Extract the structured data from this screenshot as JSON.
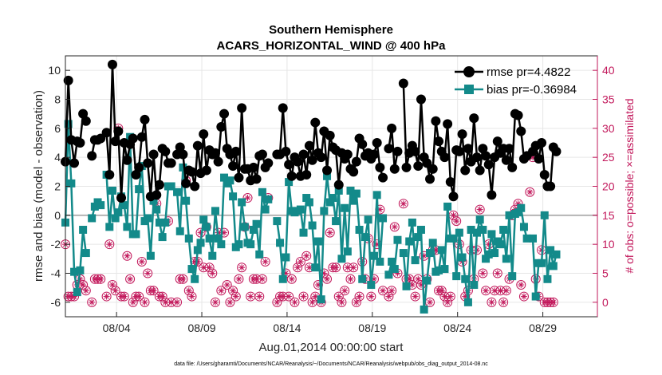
{
  "chart_data": {
    "type": "line",
    "title": "Southern Hemisphere",
    "subtitle": "ACARS_HORIZONTAL_WIND @ 400 hPa",
    "xlabel": "Aug.01,2014 00:00:00 start",
    "ylabel": "rmse and bias (model - observation)",
    "y2label": "# of obs: o=possible; ×=assimilated",
    "footnote": "data file: /Users/gharamti/Documents/NCAR/Reanalysis/~/Documents/NCAR/Reanalysis/webpub/obs_diag_output_2014-08.nc",
    "xlim": [
      1,
      32.2
    ],
    "ylim": [
      -7,
      11
    ],
    "y2lim": [
      -2.5,
      42.5
    ],
    "yticks": [
      -6,
      -4,
      -2,
      0,
      2,
      4,
      6,
      8,
      10
    ],
    "y2ticks": [
      0,
      5,
      10,
      15,
      20,
      25,
      30,
      35,
      40
    ],
    "xticks": [
      {
        "day": 4,
        "label": "08/04"
      },
      {
        "day": 9,
        "label": "08/09"
      },
      {
        "day": 14,
        "label": "08/14"
      },
      {
        "day": 19,
        "label": "08/19"
      },
      {
        "day": 24,
        "label": "08/24"
      },
      {
        "day": 29,
        "label": "08/29"
      }
    ],
    "legend": [
      "rmse pr=4.4822",
      "bias pr=-0.36984"
    ],
    "legend_position": "top-right",
    "grid": true,
    "colors": {
      "rmse": "#000000",
      "bias": "#138a8a",
      "obs": "#c2185b",
      "zero": "#b4b4b4",
      "grid": "#e6e6e6"
    },
    "series": [
      {
        "name": "rmse",
        "values": [
          3.7,
          9.3,
          5.2,
          3.6,
          5.1,
          5.0,
          7.0,
          6.5,
          null,
          4.1,
          5.2,
          5.2,
          5.3,
          null,
          5.7,
          2.8,
          10.4,
          5.1,
          5.8,
          1.2,
          5.0,
          3.8,
          4.9,
          5.3,
          2.8,
          3.3,
          5.4,
          6.6,
          3.6,
          1.3,
          4.2,
          1.4,
          2.1,
          4.6,
          4.4,
          3.6,
          3.6,
          null,
          4.2,
          4.7,
          4.2,
          2.2,
          3.1,
          3.0,
          2.0,
          4.8,
          2.9,
          5.6,
          3.1,
          4.5,
          4.2,
          4.3,
          3.7,
          6.1,
          7.0,
          4.6,
          4.2,
          3.4,
          4.4,
          2.6,
          7.4,
          3.2,
          3.2,
          2.4,
          3.3,
          2.5,
          4.1,
          4.2,
          3.3,
          3.6,
          null,
          null,
          4.2,
          4.2,
          7.4,
          4.4,
          3.5,
          2.7,
          4.0,
          3.7,
          2.7,
          4.2,
          2.8,
          4.8,
          3.8,
          6.4,
          4.3,
          4.0,
          5.8,
          3.1,
          5.5,
          4.7,
          4.5,
          2.1,
          4.3,
          3.9,
          4.2,
          3.2,
          3.0,
          3.7,
          5.3,
          4.9,
          4.1,
          4.3,
          3.9,
          4.2,
          5.0,
          3.3,
          2.6,
          null,
          4.6,
          6.0,
          3.2,
          4.4,
          null,
          9.1,
          3.3,
          4.3,
          4.8,
          4.4,
          3.4,
          8.0,
          4.0,
          3.6,
          2.5,
          3.2,
          6.5,
          5.1,
          4.4,
          4.0,
          6.3,
          2.3,
          1.3,
          4.5,
          4.4,
          5.6,
          3.1,
          4.6,
          3.7,
          6.7,
          4.0,
          3.1,
          4.6,
          4.1,
          3.5,
          1.4,
          4.0,
          5.1,
          4.3,
          4.6,
          3.8,
          4.6,
          3.3,
          7.0,
          6.9,
          5.8,
          3.9,
          4.1,
          null,
          4.4,
          4.8,
          3.9,
          5.0,
          2.8,
          2.0,
          2.0,
          4.7,
          4.4
        ]
      },
      {
        "name": "bias",
        "values": [
          -0.5,
          6.3,
          2.2,
          -3.9,
          -5.3,
          -3.8,
          -1.0,
          -2.6,
          null,
          -0.2,
          0.6,
          0.9,
          0.7,
          null,
          2.8,
          -0.8,
          1.7,
          -0.2,
          0.2,
          1.3,
          0.7,
          -0.8,
          5.4,
          -1.3,
          -1.3,
          1.8,
          3.4,
          -0.4,
          -0.2,
          -2.8,
          1.0,
          0.4,
          -0.5,
          -1.5,
          -0.5,
          2.0,
          2.0,
          null,
          1.6,
          -1.1,
          3.3,
          1.0,
          -1.6,
          -3.7,
          -4.4,
          -2.4,
          -1.9,
          -0.3,
          -0.8,
          -1.6,
          -2.8,
          0.3,
          -1.6,
          -2.0,
          2.6,
          2.2,
          2.4,
          1.3,
          -2.2,
          -2.0,
          0.9,
          -0.8,
          -1.9,
          -2.0,
          -1.0,
          -0.6,
          -2.7,
          1.6,
          0.4,
          1.1,
          null,
          null,
          -0.4,
          -1.9,
          -4.4,
          -2.9,
          2.3,
          0.3,
          0.2,
          0.3,
          0.4,
          -1.2,
          1.2,
          0.9,
          -0.7,
          -3.6,
          -1.8,
          -5.8,
          0.3,
          2.7,
          0.9,
          1.2,
          -0.4,
          1.7,
          -3.0,
          0.5,
          -2.5,
          1.7,
          1.0,
          1.5,
          -1.0,
          -4.4,
          -1.5,
          -0.3,
          -4.8,
          -2.8,
          1.4,
          -3.2,
          -0.2,
          null,
          -4.1,
          -3.2,
          -3.7,
          -1.7,
          null,
          -2.6,
          -4.9,
          -1.8,
          -0.5,
          -3.1,
          -1.5,
          -1.0,
          -6.5,
          -4.5,
          -2.6,
          -1.9,
          -3.9,
          -3.8,
          -2.4,
          -3.7,
          0.6,
          -1.6,
          -1.6,
          -4.2,
          -1.2,
          -2.9,
          -4.4,
          -6.0,
          -1.0,
          -4.8,
          -1.2,
          -0.3,
          -1.0,
          -3.0,
          -2.7,
          -1.3,
          -2.6,
          -1.8,
          -2.0,
          -1.0,
          -3.0,
          0.0,
          -4.2,
          0.1,
          0.2,
          0.5,
          -0.8,
          -1.6,
          null,
          -1.6,
          -5.6,
          -3.3,
          -3.3,
          0.0,
          -4.4,
          -2.4,
          -3.5,
          -2.7
        ]
      },
      {
        "name": "obs_possible",
        "values": [
          10,
          1,
          1,
          1,
          3,
          4,
          3,
          2,
          null,
          0,
          4,
          4,
          4,
          null,
          1,
          10,
          3,
          2,
          30,
          1,
          1,
          8,
          4,
          0,
          1,
          1,
          7,
          0,
          5,
          2,
          2,
          17,
          1,
          1,
          0,
          14,
          0,
          null,
          0,
          4,
          4,
          21,
          2,
          1,
          7,
          7,
          12,
          6,
          13,
          6,
          5,
          0,
          12,
          2,
          12,
          3,
          0,
          2,
          1,
          4,
          6,
          13,
          18,
          1,
          4,
          4,
          1,
          4,
          7,
          18,
          null,
          null,
          0,
          1,
          1,
          5,
          1,
          4,
          0,
          6,
          7,
          1,
          8,
          6,
          0,
          1,
          3,
          0,
          5,
          4,
          12,
          6,
          6,
          1,
          0,
          2,
          6,
          4,
          6,
          0,
          1,
          7,
          4,
          11,
          1,
          4,
          10,
          16,
          2,
          null,
          1,
          2,
          13,
          5,
          null,
          17,
          4,
          4,
          3,
          1,
          4,
          3,
          8,
          4,
          0,
          9,
          9,
          2,
          2,
          1,
          0,
          1,
          15,
          14,
          10,
          7,
          1,
          2,
          9,
          4,
          9,
          16,
          5,
          2,
          10,
          0,
          2,
          5,
          2,
          0,
          2,
          4,
          15,
          16,
          17,
          3,
          1,
          null,
          19,
          25,
          4,
          1,
          9,
          0,
          0,
          0,
          0
        ]
      },
      {
        "name": "obs_assimilated",
        "values": [
          10,
          1,
          1,
          1,
          3,
          4,
          3,
          2,
          null,
          0,
          4,
          4,
          4,
          null,
          1,
          10,
          3,
          2,
          30,
          1,
          1,
          8,
          4,
          0,
          1,
          1,
          7,
          0,
          5,
          2,
          2,
          17,
          1,
          1,
          0,
          14,
          0,
          null,
          0,
          4,
          4,
          21,
          2,
          1,
          7,
          7,
          12,
          6,
          13,
          6,
          5,
          0,
          12,
          2,
          12,
          3,
          0,
          2,
          1,
          4,
          6,
          13,
          18,
          1,
          4,
          4,
          1,
          4,
          7,
          18,
          null,
          null,
          0,
          1,
          1,
          5,
          1,
          4,
          0,
          6,
          7,
          1,
          8,
          6,
          0,
          1,
          3,
          0,
          5,
          4,
          12,
          6,
          6,
          1,
          0,
          2,
          6,
          4,
          6,
          0,
          1,
          7,
          4,
          11,
          1,
          4,
          10,
          16,
          2,
          null,
          1,
          2,
          13,
          5,
          null,
          17,
          4,
          4,
          3,
          1,
          4,
          3,
          8,
          4,
          0,
          9,
          9,
          2,
          2,
          1,
          0,
          1,
          15,
          14,
          10,
          7,
          1,
          2,
          9,
          4,
          9,
          16,
          5,
          2,
          10,
          0,
          2,
          5,
          2,
          0,
          2,
          4,
          15,
          16,
          17,
          3,
          1,
          null,
          19,
          25,
          4,
          1,
          9,
          0,
          0,
          0,
          0
        ]
      }
    ]
  }
}
